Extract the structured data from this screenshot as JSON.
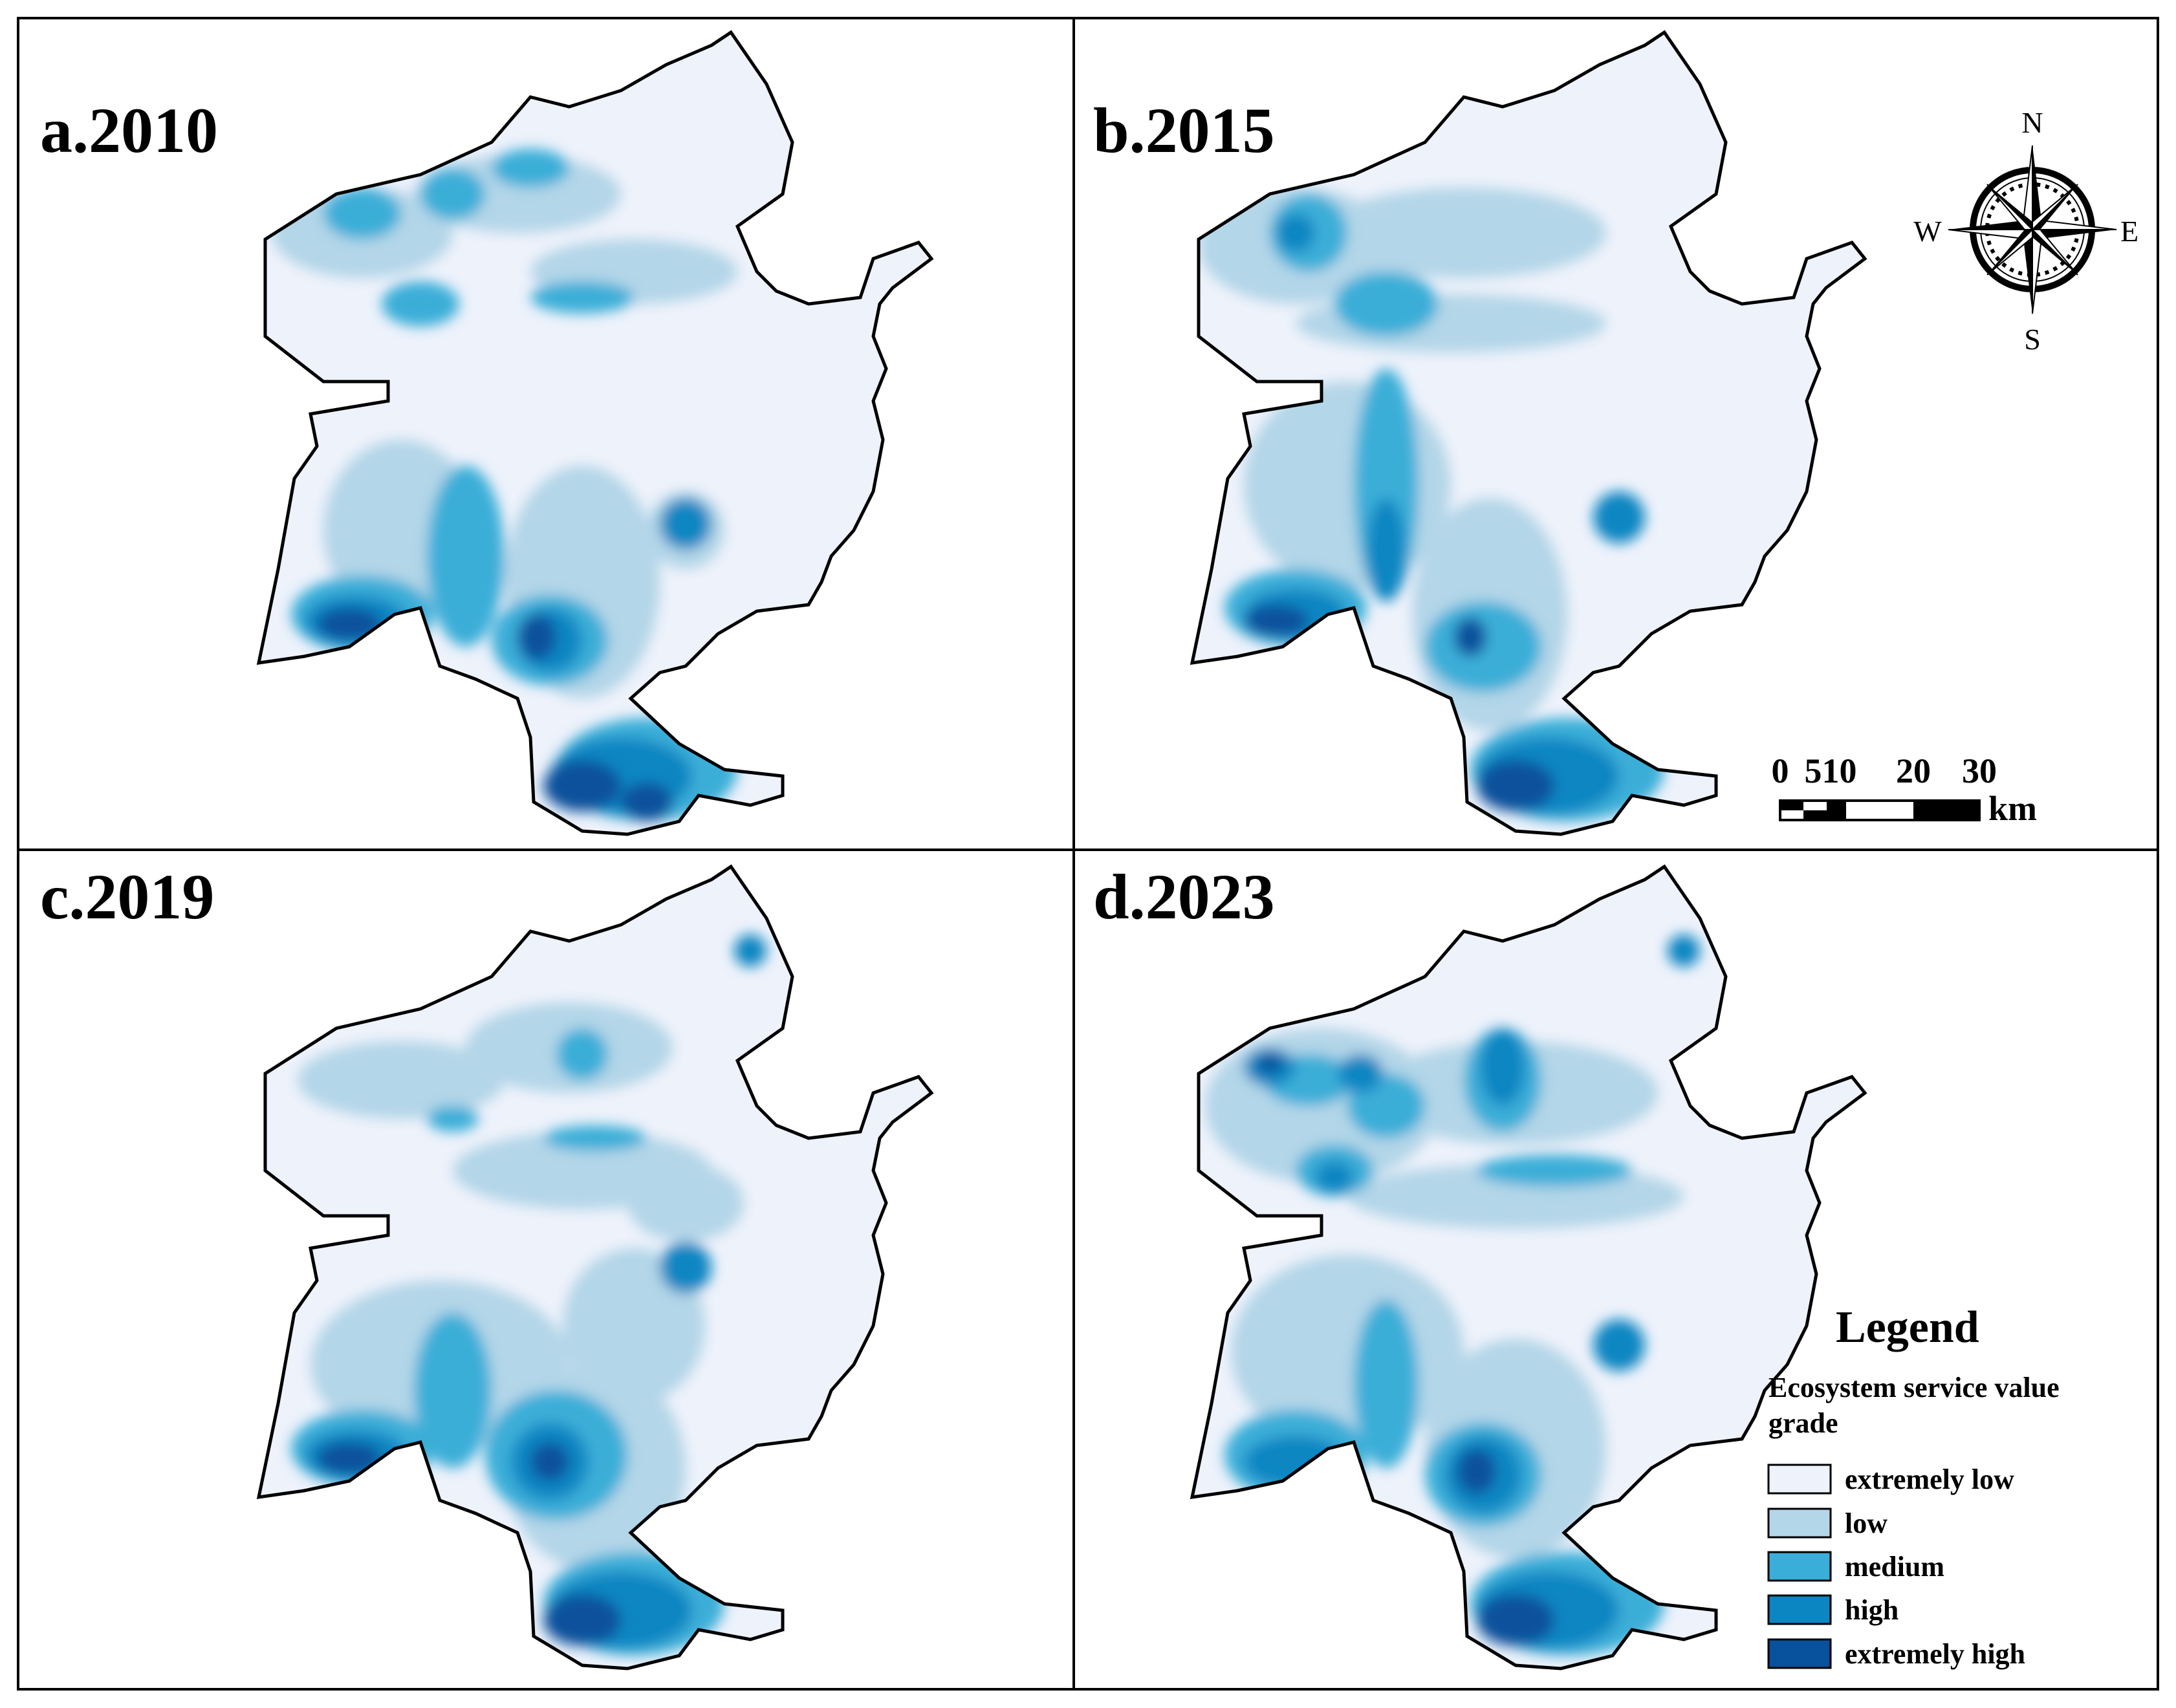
{
  "panels": [
    {
      "id": "a",
      "title": "a.2010"
    },
    {
      "id": "b",
      "title": "b.2015"
    },
    {
      "id": "c",
      "title": "c.2019"
    },
    {
      "id": "d",
      "title": "d.2023"
    }
  ],
  "compass": {
    "north": "N",
    "south": "S",
    "east": "E",
    "west": "W"
  },
  "scale_bar": {
    "ticks": [
      "0",
      "510",
      "20",
      "30"
    ],
    "unit": "km"
  },
  "legend": {
    "title": "Legend",
    "subtitle_line1": "Ecosystem service value",
    "subtitle_line2": "grade",
    "classes": [
      {
        "label": "extremely low",
        "color": "#eef2fb"
      },
      {
        "label": "low",
        "color": "#b3d6e8"
      },
      {
        "label": "medium",
        "color": "#3aaed8"
      },
      {
        "label": "high",
        "color": "#0b86c2"
      },
      {
        "label": "extremely high",
        "color": "#08519c"
      }
    ]
  },
  "colors": {
    "extremely_low": "#eef2fb",
    "low": "#b3d6e8",
    "medium": "#3aaed8",
    "high": "#0b86c2",
    "extremely_high": "#08519c",
    "outline": "#000000"
  }
}
